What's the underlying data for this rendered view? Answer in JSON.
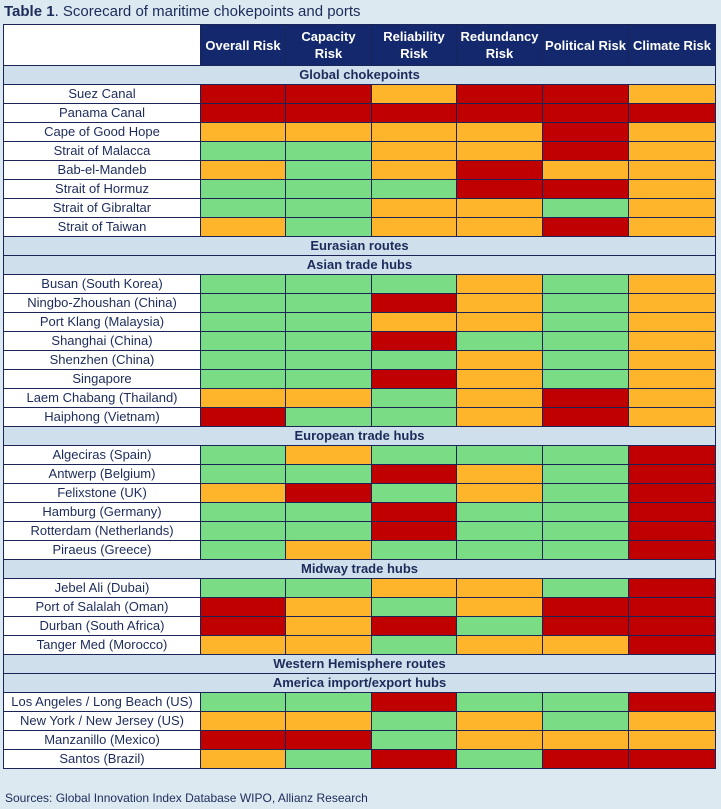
{
  "title": {
    "prefix": "Table 1",
    "text": ". Scorecard of maritime chokepoints and ports"
  },
  "colors": {
    "red": "#c00000",
    "amber": "#ffb52b",
    "green": "#7bdc86"
  },
  "columns": [
    "Overall Risk",
    "Capacity Risk",
    "Reliability Risk",
    "Redundancy Risk",
    "Political Risk",
    "Climate Risk"
  ],
  "sections": [
    {
      "type": "header",
      "label": "Global chokepoints"
    },
    {
      "type": "rows",
      "rows": [
        {
          "name": "Suez Canal",
          "risks": [
            "red",
            "red",
            "amber",
            "red",
            "red",
            "amber"
          ]
        },
        {
          "name": "Panama Canal",
          "risks": [
            "red",
            "red",
            "red",
            "red",
            "red",
            "red"
          ]
        },
        {
          "name": "Cape of Good Hope",
          "risks": [
            "amber",
            "amber",
            "amber",
            "amber",
            "red",
            "amber"
          ]
        },
        {
          "name": "Strait of Malacca",
          "risks": [
            "green",
            "green",
            "amber",
            "amber",
            "red",
            "amber"
          ]
        },
        {
          "name": "Bab-el-Mandeb",
          "risks": [
            "amber",
            "green",
            "amber",
            "red",
            "amber",
            "amber"
          ]
        },
        {
          "name": "Strait of Hormuz",
          "risks": [
            "green",
            "green",
            "green",
            "red",
            "red",
            "amber"
          ]
        },
        {
          "name": "Strait of Gibraltar",
          "risks": [
            "green",
            "green",
            "amber",
            "amber",
            "green",
            "amber"
          ]
        },
        {
          "name": "Strait of Taiwan",
          "risks": [
            "amber",
            "green",
            "amber",
            "amber",
            "red",
            "amber"
          ]
        }
      ]
    },
    {
      "type": "header",
      "label": "Eurasian routes"
    },
    {
      "type": "header",
      "label": "Asian trade hubs"
    },
    {
      "type": "rows",
      "rows": [
        {
          "name": "Busan (South Korea)",
          "risks": [
            "green",
            "green",
            "green",
            "amber",
            "green",
            "amber"
          ]
        },
        {
          "name": "Ningbo-Zhoushan (China)",
          "risks": [
            "green",
            "green",
            "red",
            "amber",
            "green",
            "amber"
          ]
        },
        {
          "name": "Port Klang (Malaysia)",
          "risks": [
            "green",
            "green",
            "amber",
            "amber",
            "green",
            "amber"
          ]
        },
        {
          "name": "Shanghai (China)",
          "risks": [
            "green",
            "green",
            "red",
            "green",
            "green",
            "amber"
          ]
        },
        {
          "name": "Shenzhen (China)",
          "risks": [
            "green",
            "green",
            "green",
            "amber",
            "green",
            "amber"
          ]
        },
        {
          "name": "Singapore",
          "risks": [
            "green",
            "green",
            "red",
            "amber",
            "green",
            "amber"
          ]
        },
        {
          "name": "Laem Chabang (Thailand)",
          "risks": [
            "amber",
            "amber",
            "green",
            "amber",
            "red",
            "amber"
          ]
        },
        {
          "name": "Haiphong (Vietnam)",
          "risks": [
            "red",
            "green",
            "green",
            "amber",
            "red",
            "amber"
          ]
        }
      ]
    },
    {
      "type": "header",
      "label": "European trade hubs"
    },
    {
      "type": "rows",
      "rows": [
        {
          "name": "Algeciras (Spain)",
          "risks": [
            "green",
            "amber",
            "green",
            "green",
            "green",
            "red"
          ]
        },
        {
          "name": "Antwerp (Belgium)",
          "risks": [
            "green",
            "green",
            "red",
            "amber",
            "green",
            "red"
          ]
        },
        {
          "name": "Felixstone (UK)",
          "risks": [
            "amber",
            "red",
            "green",
            "amber",
            "green",
            "red"
          ]
        },
        {
          "name": "Hamburg (Germany)",
          "risks": [
            "green",
            "green",
            "red",
            "green",
            "green",
            "red"
          ]
        },
        {
          "name": "Rotterdam (Netherlands)",
          "risks": [
            "green",
            "green",
            "red",
            "green",
            "green",
            "red"
          ]
        },
        {
          "name": "Piraeus (Greece)",
          "risks": [
            "green",
            "amber",
            "green",
            "green",
            "green",
            "red"
          ]
        }
      ]
    },
    {
      "type": "header",
      "label": "Midway trade hubs"
    },
    {
      "type": "rows",
      "rows": [
        {
          "name": "Jebel Ali (Dubai)",
          "risks": [
            "green",
            "green",
            "amber",
            "amber",
            "green",
            "red"
          ]
        },
        {
          "name": "Port of Salalah (Oman)",
          "risks": [
            "red",
            "amber",
            "green",
            "amber",
            "red",
            "red"
          ]
        },
        {
          "name": "Durban (South Africa)",
          "risks": [
            "red",
            "amber",
            "red",
            "green",
            "red",
            "red"
          ]
        },
        {
          "name": "Tanger Med (Morocco)",
          "risks": [
            "amber",
            "amber",
            "green",
            "amber",
            "amber",
            "red"
          ]
        }
      ]
    },
    {
      "type": "header",
      "label": "Western Hemisphere routes"
    },
    {
      "type": "header",
      "label": "America import/export hubs"
    },
    {
      "type": "rows",
      "rows": [
        {
          "name": "Los Angeles / Long Beach (US)",
          "risks": [
            "green",
            "green",
            "red",
            "green",
            "green",
            "red"
          ]
        },
        {
          "name": "New York / New Jersey (US)",
          "risks": [
            "amber",
            "amber",
            "green",
            "amber",
            "green",
            "amber"
          ]
        },
        {
          "name": "Manzanillo (Mexico)",
          "risks": [
            "red",
            "red",
            "green",
            "amber",
            "amber",
            "amber"
          ]
        },
        {
          "name": "Santos (Brazil)",
          "risks": [
            "amber",
            "green",
            "red",
            "green",
            "red",
            "red"
          ]
        }
      ]
    }
  ],
  "source": "Sources: Global Innovation Index Database WIPO, Allianz Research"
}
